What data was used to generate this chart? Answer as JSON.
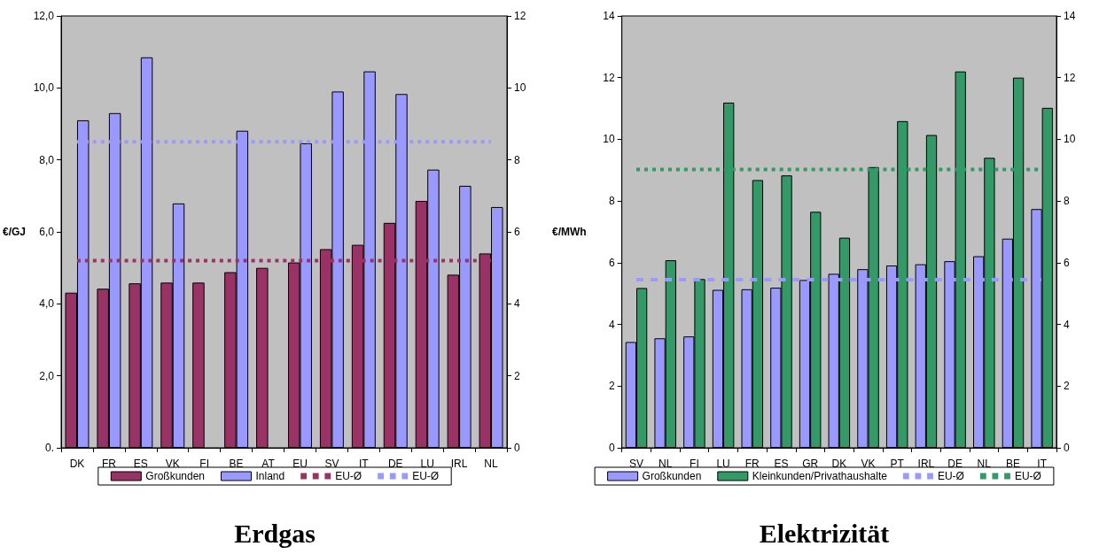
{
  "chart_data": [
    {
      "type": "bar",
      "title": "Erdgas",
      "ylabel": "€/GJ",
      "categories": [
        "DK",
        "FR",
        "ES",
        "VK",
        "FI",
        "BE",
        "AT",
        "EU",
        "SV",
        "IT",
        "DE",
        "LU",
        "IRL",
        "NL"
      ],
      "series": [
        {
          "name": "Großkunden",
          "color": "#993366",
          "values": [
            4.31,
            4.42,
            4.57,
            4.59,
            4.59,
            4.88,
            5.0,
            5.15,
            5.52,
            5.64,
            6.25,
            6.86,
            4.81,
            5.4
          ]
        },
        {
          "name": "Inland",
          "color": "#9999ff",
          "values": [
            9.1,
            9.3,
            10.85,
            6.79,
            null,
            8.81,
            null,
            8.46,
            9.9,
            10.46,
            9.83,
            7.73,
            7.28,
            6.69
          ]
        },
        {
          "name": "EU-Ø",
          "type": "line",
          "color": "#993366",
          "line_style": "dotted",
          "values": [
            5.2,
            5.2,
            5.2,
            5.2,
            5.2,
            5.2,
            5.2,
            5.2,
            5.2,
            5.2,
            5.2,
            5.2,
            5.2,
            5.2
          ]
        },
        {
          "name": "EU-Ø",
          "type": "line",
          "color": "#9999ff",
          "line_style": "dotted",
          "values": [
            8.5,
            8.5,
            8.5,
            8.5,
            8.5,
            8.5,
            8.5,
            8.5,
            8.5,
            8.5,
            8.5,
            8.5,
            8.5,
            8.5
          ]
        }
      ],
      "ylim": [
        0,
        12
      ],
      "yticks": [
        {
          "value": 0,
          "label": "0."
        },
        {
          "value": 2,
          "label": "2,0"
        },
        {
          "value": 4,
          "label": "4,0"
        },
        {
          "value": 6,
          "label": "6,0"
        },
        {
          "value": 8,
          "label": "8,0"
        },
        {
          "value": 10,
          "label": "10,0"
        },
        {
          "value": 12,
          "label": "12,0"
        }
      ],
      "y2lim": [
        0,
        12
      ],
      "y2ticks": [
        0,
        2,
        4,
        6,
        8,
        10,
        12
      ],
      "marker": "none",
      "grid": false,
      "legend": "bottom"
    },
    {
      "type": "bar",
      "title": "Elektrizität",
      "ylabel": "€/MWh",
      "categories": [
        "SV",
        "NL",
        "FI",
        "LU",
        "FR",
        "ES",
        "GR",
        "DK",
        "VK",
        "PT",
        "IRL",
        "DE",
        "NL",
        "BE",
        "IT"
      ],
      "series": [
        {
          "name": "Großkunden",
          "color": "#9999ff",
          "values": [
            3.43,
            3.55,
            3.61,
            5.12,
            5.14,
            5.19,
            5.44,
            5.64,
            5.79,
            5.91,
            5.95,
            6.05,
            6.21,
            6.78,
            7.74
          ]
        },
        {
          "name": "Kleinkunden/Privathaushalte",
          "color": "#339966",
          "values": [
            5.18,
            6.08,
            5.47,
            11.19,
            8.68,
            8.83,
            7.65,
            6.81,
            9.1,
            10.59,
            10.14,
            12.2,
            9.4,
            12.0,
            11.02
          ]
        },
        {
          "name": "EU-Ø",
          "type": "line",
          "color": "#9999ff",
          "line_style": "dashed",
          "values": [
            5.45,
            5.45,
            5.45,
            5.45,
            5.45,
            5.45,
            5.45,
            5.45,
            5.45,
            5.45,
            5.45,
            5.45,
            5.45,
            5.45,
            5.45
          ]
        },
        {
          "name": "EU-Ø",
          "type": "line",
          "color": "#339966",
          "line_style": "dotted",
          "values": [
            9.02,
            9.02,
            9.02,
            9.02,
            9.02,
            9.02,
            9.02,
            9.02,
            9.02,
            9.02,
            9.02,
            9.02,
            9.02,
            9.02,
            9.02
          ]
        }
      ],
      "ylim": [
        0,
        14
      ],
      "yticks": [
        0,
        2,
        4,
        6,
        8,
        10,
        12,
        14
      ],
      "y2lim": [
        0,
        14
      ],
      "y2ticks": [
        0,
        2,
        4,
        6,
        8,
        10,
        12,
        14
      ],
      "marker": "none",
      "grid": false,
      "legend": "bottom"
    }
  ]
}
